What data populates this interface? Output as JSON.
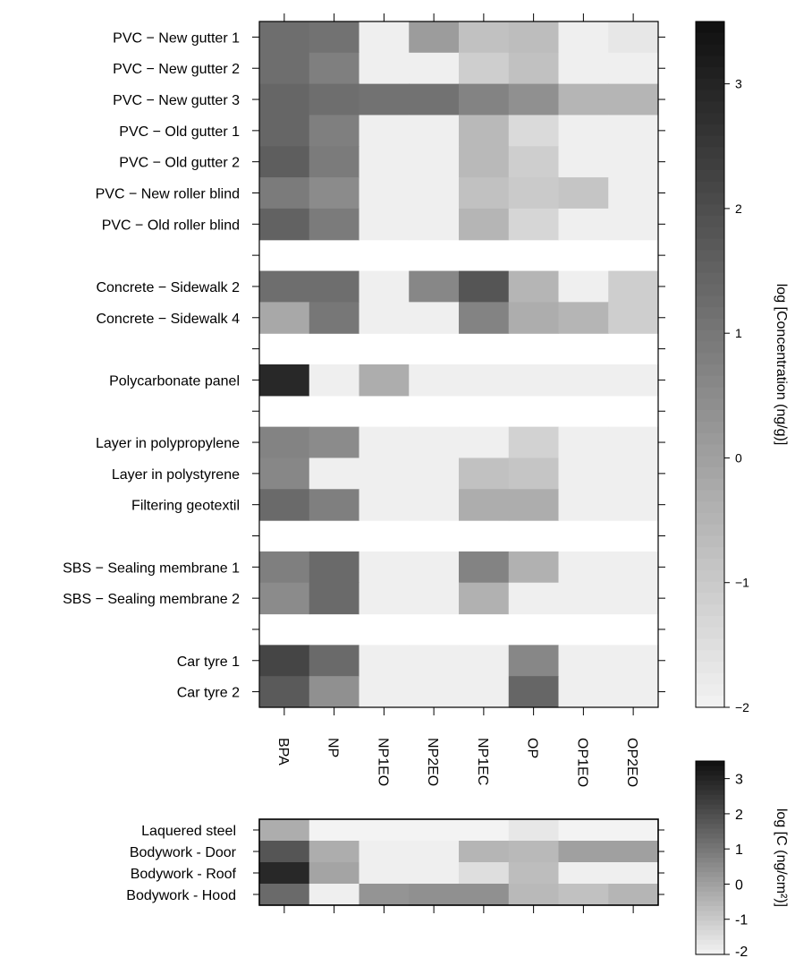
{
  "chart_data": [
    {
      "type": "heatmap",
      "columns": [
        "BPA",
        "NP",
        "NP1EO",
        "NP2EO",
        "NP1EC",
        "OP",
        "OP1EO",
        "OP2EO"
      ],
      "rows": [
        "PVC − New gutter 1",
        "PVC − New gutter 2",
        "PVC − New gutter 3",
        "PVC − Old gutter 1",
        "PVC − Old gutter 2",
        "PVC − New roller blind",
        "PVC − Old roller blind",
        "",
        "Concrete − Sidewalk 2",
        "Concrete − Sidewalk 4",
        "",
        "Polycarbonate panel",
        "",
        "Layer in polypropylene",
        "Layer in polystyrene",
        "Filtering geotextil",
        "",
        "SBS − Sealing membrane 1",
        "SBS − Sealing membrane 2",
        "",
        "Car tyre 1",
        "Car tyre 2"
      ],
      "values": [
        [
          1.2,
          1.1,
          -1.9,
          0.1,
          -0.8,
          -0.7,
          -1.9,
          -1.7
        ],
        [
          1.2,
          0.8,
          -1.9,
          -1.9,
          -1.1,
          -0.8,
          -1.9,
          -1.9
        ],
        [
          1.4,
          1.2,
          1.1,
          1.1,
          0.7,
          0.4,
          -0.5,
          -0.5
        ],
        [
          1.4,
          0.8,
          -1.9,
          -1.9,
          -0.6,
          -1.4,
          -1.9,
          -1.9
        ],
        [
          1.6,
          0.9,
          -1.9,
          -1.9,
          -0.6,
          -1.1,
          -1.9,
          -1.9
        ],
        [
          0.9,
          0.5,
          -1.9,
          -1.9,
          -0.8,
          -1.0,
          -0.9,
          -1.9
        ],
        [
          1.5,
          0.9,
          -1.9,
          -1.9,
          -0.5,
          -1.3,
          -1.9,
          -1.9
        ],
        [
          null,
          null,
          null,
          null,
          null,
          null,
          null,
          null
        ],
        [
          1.2,
          1.2,
          -1.9,
          0.6,
          1.8,
          -0.5,
          -1.9,
          -1.1
        ],
        [
          -0.2,
          1.0,
          -1.9,
          -1.9,
          0.7,
          -0.3,
          -0.5,
          -1.1
        ],
        [
          null,
          null,
          null,
          null,
          null,
          null,
          null,
          null
        ],
        [
          2.9,
          -1.9,
          -0.3,
          -1.9,
          -1.9,
          -1.9,
          -1.9,
          -1.9
        ],
        [
          null,
          null,
          null,
          null,
          null,
          null,
          null,
          null
        ],
        [
          0.7,
          0.5,
          -1.9,
          -1.9,
          -1.9,
          -1.2,
          -1.9,
          -1.9
        ],
        [
          0.6,
          -1.9,
          -1.9,
          -1.9,
          -0.8,
          -0.9,
          -1.9,
          -1.9
        ],
        [
          1.3,
          0.8,
          -1.9,
          -1.9,
          -0.3,
          -0.3,
          -1.9,
          -1.9
        ],
        [
          null,
          null,
          null,
          null,
          null,
          null,
          null,
          null
        ],
        [
          0.8,
          1.3,
          -1.9,
          -1.9,
          0.7,
          -0.4,
          -1.9,
          -1.9
        ],
        [
          0.5,
          1.3,
          -1.9,
          -1.9,
          -0.4,
          -1.9,
          -1.9,
          -1.9
        ],
        [
          null,
          null,
          null,
          null,
          null,
          null,
          null,
          null
        ],
        [
          2.2,
          1.3,
          -1.9,
          -1.9,
          -1.9,
          0.6,
          -1.9,
          -1.9
        ],
        [
          1.7,
          0.4,
          -1.9,
          -1.9,
          -1.9,
          1.4,
          -1.9,
          -1.9
        ]
      ],
      "colorbar": {
        "label": "log [Concentration (ng/g)]",
        "range": [
          -2,
          3.5
        ],
        "ticks": [
          3,
          2,
          1,
          0,
          -1,
          -2
        ]
      },
      "color_low": "#f3f3f3",
      "color_high": "#0f0f0f"
    },
    {
      "type": "heatmap",
      "columns": [
        "BPA",
        "NP",
        "NP1EO",
        "NP2EO",
        "NP1EC",
        "OP",
        "OP1EO",
        "OP2EO"
      ],
      "rows": [
        "Laquered steel",
        "Bodywork - Door",
        "Bodywork - Roof",
        "Bodywork - Hood"
      ],
      "values": [
        [
          -0.3,
          -2.0,
          -2.0,
          -2.0,
          -2.0,
          -1.7,
          -2.0,
          -2.0
        ],
        [
          1.8,
          -0.3,
          -1.9,
          -1.9,
          -0.5,
          -0.6,
          0.0,
          0.0
        ],
        [
          2.9,
          -0.1,
          -1.9,
          -1.9,
          -1.5,
          -0.7,
          -1.9,
          -1.9
        ],
        [
          1.3,
          -1.9,
          0.3,
          0.4,
          0.4,
          -0.6,
          -0.8,
          -0.5
        ]
      ],
      "colorbar": {
        "label": "log [C (ng/cm²)]",
        "range": [
          -2,
          3.5
        ],
        "ticks": [
          3,
          2,
          1,
          0,
          -1,
          -2
        ]
      },
      "color_low": "#f3f3f3",
      "color_high": "#0f0f0f"
    }
  ]
}
